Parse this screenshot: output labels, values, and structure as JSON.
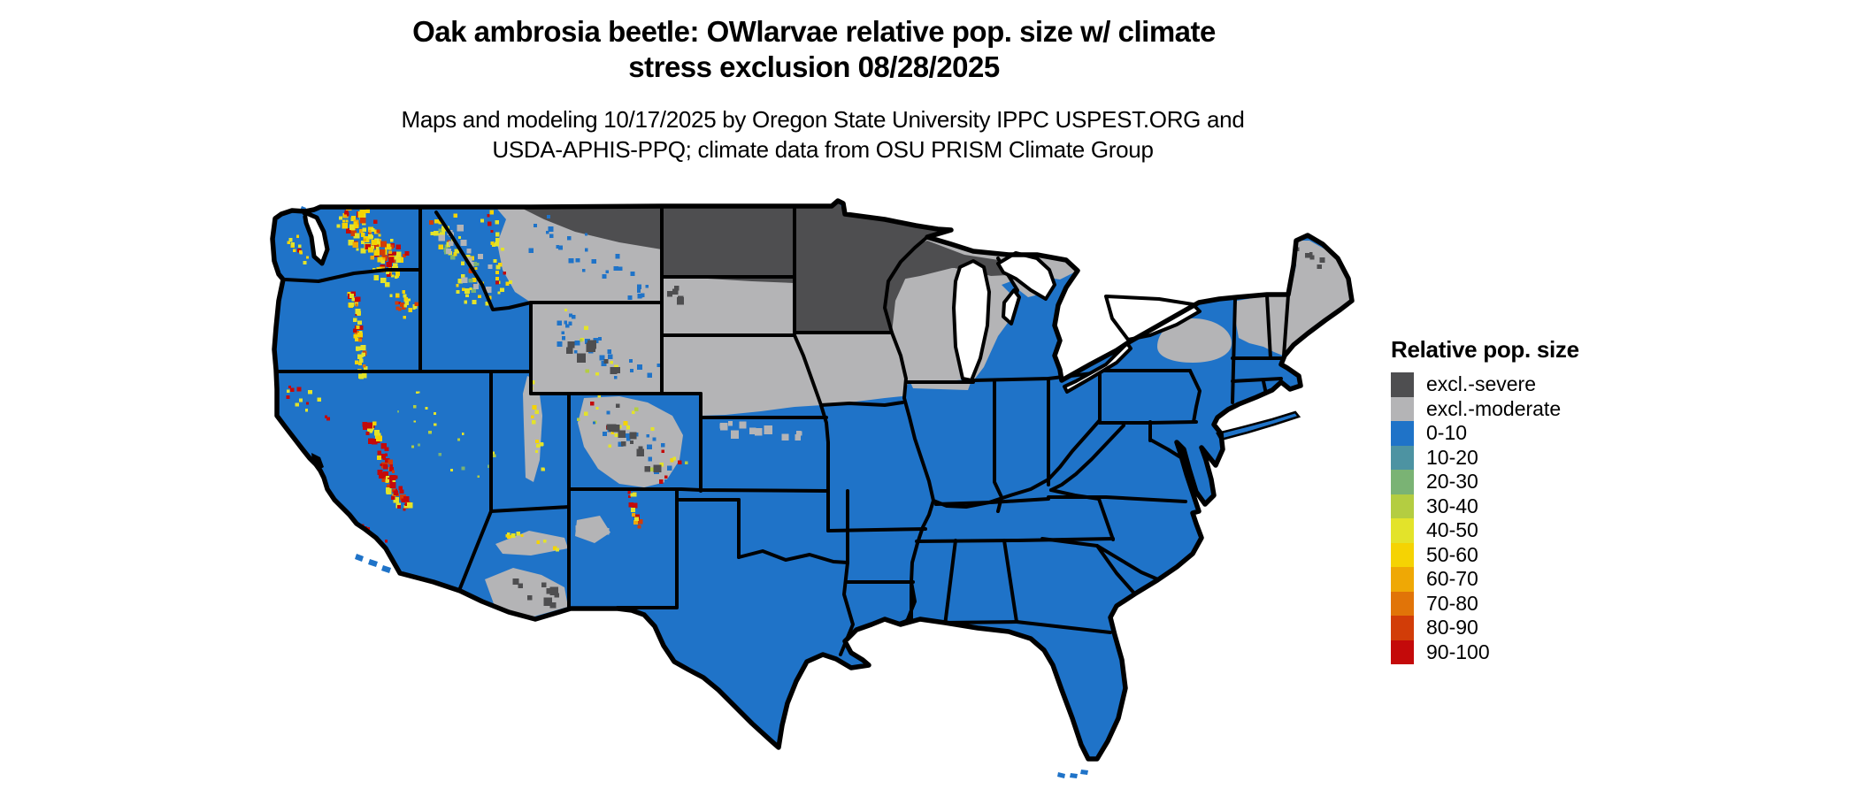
{
  "title": {
    "line1": "Oak ambrosia beetle: OWlarvae relative pop. size w/ climate",
    "line2": "stress exclusion 08/28/2025"
  },
  "subtitle": {
    "line1": "Maps and modeling 10/17/2025 by Oregon State University IPPC USPEST.ORG and",
    "line2": "USDA-APHIS-PPQ; climate data from OSU PRISM Climate Group"
  },
  "legend": {
    "title": "Relative pop. size",
    "items": [
      {
        "id": "excl-severe",
        "label": "excl.-severe",
        "color": "#4E4E50"
      },
      {
        "id": "excl-moderate",
        "label": "excl.-moderate",
        "color": "#B4B4B6"
      },
      {
        "id": "0-10",
        "label": "0-10",
        "color": "#1F73C8"
      },
      {
        "id": "10-20",
        "label": "10-20",
        "color": "#4D93A2"
      },
      {
        "id": "20-30",
        "label": "20-30",
        "color": "#7AB374"
      },
      {
        "id": "30-40",
        "label": "30-40",
        "color": "#B4CD41"
      },
      {
        "id": "40-50",
        "label": "40-50",
        "color": "#E3E32A"
      },
      {
        "id": "50-60",
        "label": "50-60",
        "color": "#F5D303"
      },
      {
        "id": "60-70",
        "label": "60-70",
        "color": "#EFA805"
      },
      {
        "id": "70-80",
        "label": "70-80",
        "color": "#E17408"
      },
      {
        "id": "80-90",
        "label": "80-90",
        "color": "#D23D08"
      },
      {
        "id": "90-100",
        "label": "90-100",
        "color": "#C40A0A"
      }
    ]
  },
  "map": {
    "background_color": "#ffffff",
    "state_border_color": "#000000",
    "base_category": "0-10",
    "regions": [
      {
        "area": "North Dakota",
        "category": "excl-severe"
      },
      {
        "area": "Minnesota",
        "category": "excl-severe"
      },
      {
        "area": "Northern Montana band",
        "category": "excl-severe"
      },
      {
        "area": "Northern Wisconsin strip",
        "category": "excl-severe"
      },
      {
        "area": "Northern Maine patches",
        "category": "excl-severe"
      },
      {
        "area": "Montana (most)",
        "category": "excl-moderate"
      },
      {
        "area": "South Dakota",
        "category": "excl-moderate"
      },
      {
        "area": "Wyoming",
        "category": "excl-moderate"
      },
      {
        "area": "Nebraska (most)",
        "category": "excl-moderate"
      },
      {
        "area": "Iowa (northern two-thirds)",
        "category": "excl-moderate"
      },
      {
        "area": "Wisconsin (most)",
        "category": "excl-moderate"
      },
      {
        "area": "Michigan Upper Peninsula",
        "category": "excl-moderate"
      },
      {
        "area": "Colorado Rockies",
        "category": "excl-moderate"
      },
      {
        "area": "Utah Wasatch and Uinta ranges",
        "category": "excl-moderate"
      },
      {
        "area": "Southern Arizona deserts",
        "category": "excl-moderate"
      },
      {
        "area": "Adirondacks New York",
        "category": "excl-moderate"
      },
      {
        "area": "Northern Vermont and New Hampshire",
        "category": "excl-moderate"
      },
      {
        "area": "Maine inland",
        "category": "excl-moderate"
      },
      {
        "area": "Rest of contiguous United States",
        "category": "0-10"
      }
    ],
    "hotspots": [
      {
        "area": "Washington Cascades",
        "categories": [
          "40-50",
          "50-60",
          "60-70",
          "80-90",
          "90-100"
        ]
      },
      {
        "area": "Olympic Mountains WA",
        "categories": [
          "40-50",
          "50-60",
          "90-100"
        ]
      },
      {
        "area": "Oregon Cascades",
        "categories": [
          "40-50",
          "50-60",
          "70-80",
          "90-100"
        ]
      },
      {
        "area": "Blue Mountains OR",
        "categories": [
          "40-50",
          "50-60",
          "80-90",
          "90-100"
        ]
      },
      {
        "area": "Idaho and western Montana Rockies",
        "categories": [
          "20-30",
          "40-50",
          "50-60",
          "80-90"
        ]
      },
      {
        "area": "Sierra Nevada CA",
        "categories": [
          "40-50",
          "50-60",
          "80-90",
          "90-100"
        ]
      },
      {
        "area": "Southern California ranges",
        "categories": [
          "40-50",
          "50-60",
          "90-100"
        ]
      },
      {
        "area": "Nevada ranges",
        "categories": [
          "20-30",
          "30-40",
          "40-50"
        ]
      },
      {
        "area": "Colorado Rockies fringe",
        "categories": [
          "30-40",
          "40-50",
          "50-60",
          "90-100"
        ]
      },
      {
        "area": "Sangre de Cristo NM",
        "categories": [
          "40-50",
          "60-70",
          "90-100"
        ]
      },
      {
        "area": "Wasatch UT",
        "categories": [
          "40-50",
          "50-60"
        ]
      }
    ]
  }
}
